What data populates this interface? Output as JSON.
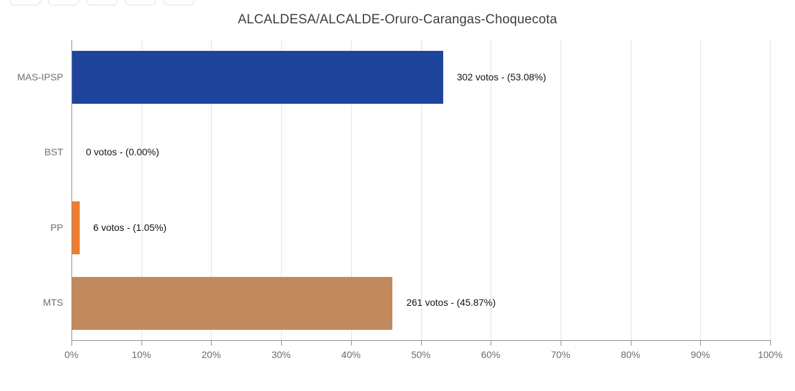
{
  "toolbar": {
    "buttons": [
      "",
      "",
      "",
      "",
      ""
    ]
  },
  "chart_data": {
    "type": "bar",
    "orientation": "horizontal",
    "title": "ALCALDESA/ALCALDE-Oruro-Carangas-Choquecota",
    "categories": [
      "MAS-IPSP",
      "BST",
      "PP",
      "MTS"
    ],
    "series": [
      {
        "party": "MAS-IPSP",
        "votes": 302,
        "pct": 53.08,
        "value_label": "302 votos - (53.08%)",
        "color": "#1e449c"
      },
      {
        "party": "BST",
        "votes": 0,
        "pct": 0,
        "value_label": "0 votos - (0.00%)",
        "color": null
      },
      {
        "party": "PP",
        "votes": 6,
        "pct": 1.05,
        "value_label": "6 votos - (1.05%)",
        "color": "#ed7d31"
      },
      {
        "party": "MTS",
        "votes": 261,
        "pct": 45.87,
        "value_label": "261 votos - (45.87%)",
        "color": "#c28a5c"
      }
    ],
    "x_ticks": [
      "0%",
      "10%",
      "20%",
      "30%",
      "40%",
      "50%",
      "60%",
      "70%",
      "80%",
      "90%",
      "100%"
    ],
    "xlim": [
      0,
      100
    ],
    "grid": true,
    "legend": false,
    "colors": {
      "grid": "#e4e4e4",
      "axis": "#8f8f8f",
      "tick_label": "#6b6b6b",
      "category_label": "#6e6e6e",
      "value_label": "#111111",
      "title": "#3d3d3d"
    }
  }
}
